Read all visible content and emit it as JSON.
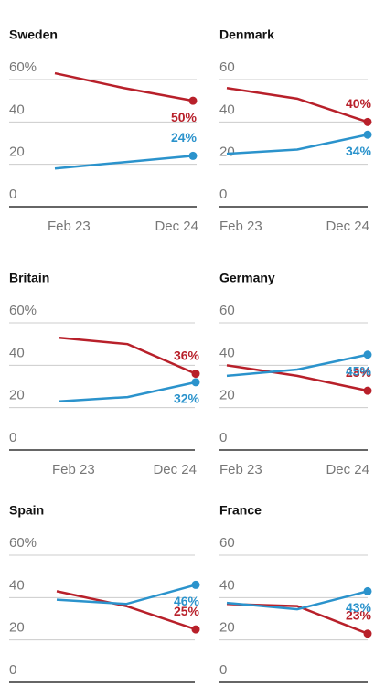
{
  "chart_data": [
    {
      "type": "line",
      "title": "Sweden",
      "categories": [
        "Feb 23",
        null,
        "Dec 24"
      ],
      "series": [
        {
          "name": null,
          "color": "#b8202a",
          "values": [
            63,
            56,
            50
          ],
          "value_labels": [
            null,
            null,
            "50%"
          ]
        },
        {
          "name": null,
          "color": "#2b93cc",
          "values": [
            18,
            21,
            24
          ],
          "value_labels": [
            null,
            null,
            "24%"
          ]
        }
      ],
      "ylim": [
        0,
        60
      ],
      "yticks": [
        0,
        20,
        40,
        {
          "value": 60,
          "label": "60%"
        }
      ],
      "grid": true
    },
    {
      "type": "line",
      "title": "Denmark",
      "categories": [
        "Feb 23",
        null,
        "Dec 24"
      ],
      "series": [
        {
          "name": null,
          "color": "#b8202a",
          "values": [
            56,
            51,
            40
          ],
          "value_labels": [
            null,
            null,
            "40%"
          ]
        },
        {
          "name": null,
          "color": "#2b93cc",
          "values": [
            25,
            27,
            34
          ],
          "value_labels": [
            null,
            null,
            "34%"
          ]
        }
      ],
      "ylim": [
        0,
        60
      ],
      "yticks": [
        0,
        20,
        40,
        60
      ],
      "grid": true
    },
    {
      "type": "line",
      "title": "Britain",
      "categories": [
        "Feb 23",
        null,
        "Dec 24"
      ],
      "series": [
        {
          "name": null,
          "color": "#b8202a",
          "values": [
            53,
            50,
            36
          ],
          "value_labels": [
            null,
            null,
            "36%"
          ]
        },
        {
          "name": null,
          "color": "#2b93cc",
          "values": [
            23,
            25,
            32
          ],
          "value_labels": [
            null,
            null,
            "32%"
          ]
        }
      ],
      "ylim": [
        0,
        60
      ],
      "yticks": [
        0,
        20,
        40,
        {
          "value": 60,
          "label": "60%"
        }
      ],
      "grid": true
    },
    {
      "type": "line",
      "title": "Germany",
      "categories": [
        "Feb 23",
        null,
        "Dec 24"
      ],
      "series": [
        {
          "name": null,
          "color": "#b8202a",
          "values": [
            40,
            35,
            28
          ],
          "value_labels": [
            null,
            null,
            "28%"
          ]
        },
        {
          "name": null,
          "color": "#2b93cc",
          "values": [
            35,
            38,
            45
          ],
          "value_labels": [
            null,
            null,
            "45%"
          ]
        }
      ],
      "ylim": [
        0,
        60
      ],
      "yticks": [
        0,
        20,
        40,
        60
      ],
      "grid": true
    },
    {
      "type": "line",
      "title": "Spain",
      "categories": [
        null,
        null,
        null
      ],
      "series": [
        {
          "name": null,
          "color": "#b8202a",
          "values": [
            43,
            36,
            25
          ],
          "value_labels": [
            null,
            null,
            "25%"
          ]
        },
        {
          "name": null,
          "color": "#2b93cc",
          "values": [
            39,
            37,
            46
          ],
          "value_labels": [
            null,
            null,
            "46%"
          ]
        }
      ],
      "ylim": [
        0,
        60
      ],
      "yticks": [
        0,
        20,
        40,
        {
          "value": 60,
          "label": "60%"
        }
      ],
      "grid": true
    },
    {
      "type": "line",
      "title": "France",
      "categories": [
        null,
        null,
        null
      ],
      "series": [
        {
          "name": null,
          "color": "#b8202a",
          "values": [
            37,
            36,
            23
          ],
          "value_labels": [
            null,
            null,
            "23%"
          ]
        },
        {
          "name": null,
          "color": "#2b93cc",
          "values": [
            37.5,
            34.5,
            43
          ],
          "value_labels": [
            null,
            null,
            "43%"
          ]
        }
      ],
      "ylim": [
        0,
        60
      ],
      "yticks": [
        0,
        20,
        40,
        60
      ],
      "grid": true
    }
  ]
}
